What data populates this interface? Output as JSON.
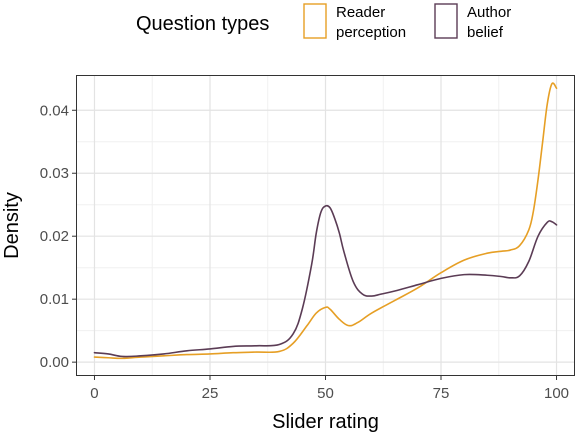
{
  "chart_data": {
    "type": "line",
    "title": "",
    "xlabel": "Slider rating",
    "ylabel": "Density",
    "xlim": [
      -4,
      104
    ],
    "ylim": [
      -0.0022,
      0.0456
    ],
    "xticks": [
      0,
      25,
      50,
      75,
      100
    ],
    "yticks": [
      0.0,
      0.01,
      0.02,
      0.03,
      0.04
    ],
    "xtick_labels": [
      "0",
      "25",
      "50",
      "75",
      "100"
    ],
    "ytick_labels": [
      "0.00",
      "0.01",
      "0.02",
      "0.03",
      "0.04"
    ],
    "grid": true,
    "legend": {
      "title": "Question types",
      "position": "top",
      "entries": [
        {
          "label_lines": [
            "Reader",
            "perception"
          ],
          "color": "#E69F25"
        },
        {
          "label_lines": [
            "Author",
            "belief"
          ],
          "color": "#5B3C55"
        }
      ]
    },
    "series": [
      {
        "name": "Reader perception",
        "color": "#E69F25",
        "x": [
          0,
          3,
          6,
          10,
          15,
          20,
          25,
          30,
          35,
          40,
          43,
          46,
          48,
          50,
          51,
          53,
          55,
          57,
          60,
          65,
          70,
          75,
          80,
          85,
          88,
          90,
          92,
          94,
          95,
          96,
          97,
          98,
          99,
          100
        ],
        "y": [
          0.0008,
          0.0007,
          0.0006,
          0.0008,
          0.001,
          0.0012,
          0.0013,
          0.0015,
          0.0016,
          0.0017,
          0.003,
          0.0058,
          0.0078,
          0.0087,
          0.0084,
          0.0068,
          0.0058,
          0.0063,
          0.0078,
          0.0098,
          0.0118,
          0.0142,
          0.0162,
          0.0173,
          0.0176,
          0.0178,
          0.0185,
          0.021,
          0.024,
          0.029,
          0.035,
          0.041,
          0.0442,
          0.0435
        ]
      },
      {
        "name": "Author belief",
        "color": "#5B3C55",
        "x": [
          0,
          3,
          6,
          10,
          15,
          20,
          25,
          30,
          35,
          40,
          43,
          45,
          47,
          48,
          49,
          50,
          51,
          52,
          53,
          54,
          56,
          58,
          60,
          62,
          65,
          70,
          75,
          80,
          85,
          88,
          90,
          92,
          94,
          96,
          98,
          99,
          100
        ],
        "y": [
          0.0015,
          0.0013,
          0.0009,
          0.001,
          0.0013,
          0.0018,
          0.0021,
          0.0025,
          0.0026,
          0.0028,
          0.0045,
          0.0085,
          0.0155,
          0.0205,
          0.0238,
          0.0248,
          0.0245,
          0.0228,
          0.0205,
          0.0175,
          0.0128,
          0.0108,
          0.0105,
          0.0108,
          0.0113,
          0.0123,
          0.0133,
          0.0139,
          0.0138,
          0.0136,
          0.0134,
          0.0137,
          0.016,
          0.02,
          0.0222,
          0.0223,
          0.0218
        ]
      }
    ]
  }
}
